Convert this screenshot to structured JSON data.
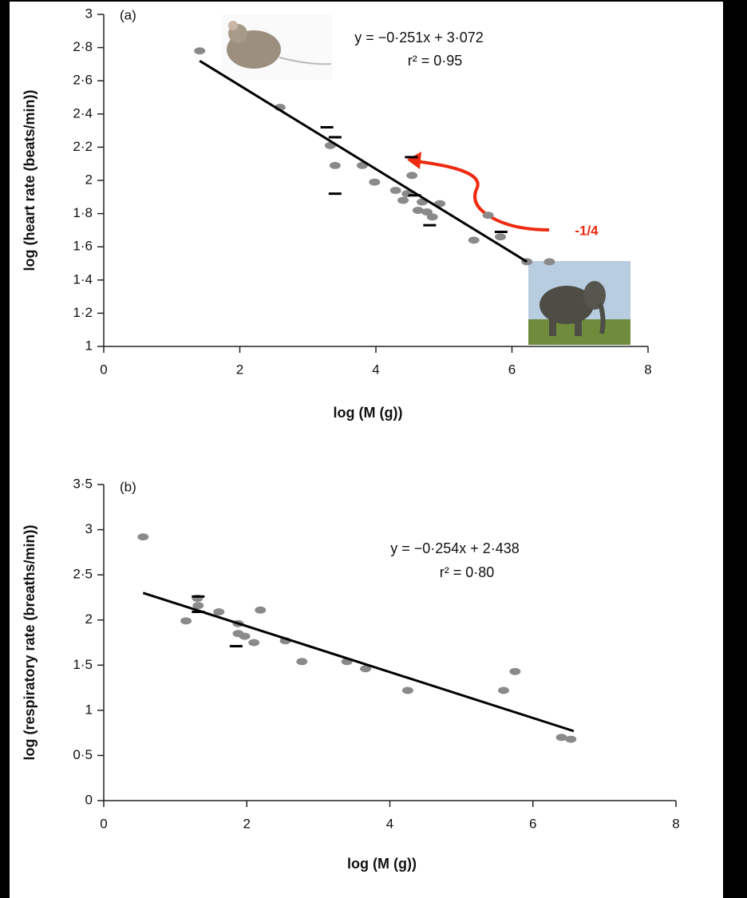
{
  "chart_data": [
    {
      "type": "scatter",
      "panel_label": "(a)",
      "equation": "y = −0·251x + 3·072",
      "r_squared": "r² = 0·95",
      "xlabel": "log (M (g))",
      "ylabel": "log (heart rate (beats/min))",
      "annotation": "-1/4",
      "xlim": [
        0,
        8
      ],
      "ylim": [
        1,
        3
      ],
      "xticks": [
        0,
        2,
        4,
        6,
        8
      ],
      "yticks": [
        1,
        {
          "value": 1.2,
          "label": "1·2"
        },
        {
          "value": 1.4,
          "label": "1·4"
        },
        {
          "value": 1.6,
          "label": "1·6"
        },
        {
          "value": 1.8,
          "label": "1·8"
        },
        2,
        {
          "value": 2.2,
          "label": "2·2"
        },
        {
          "value": 2.4,
          "label": "2·4"
        },
        {
          "value": 2.6,
          "label": "2·6"
        },
        {
          "value": 2.8,
          "label": "2·8"
        },
        3
      ],
      "series": [
        {
          "color": "#8a8a8a",
          "marker": "dot",
          "x": [
            1.41,
            2.59,
            3.33,
            3.4,
            3.8,
            3.98,
            4.29,
            4.53,
            4.46,
            4.4,
            4.68,
            4.62,
            4.75,
            4.83,
            4.94,
            5.44,
            5.65,
            5.83,
            6.22,
            6.55
          ],
          "y": [
            2.78,
            2.44,
            2.21,
            2.09,
            2.09,
            1.99,
            1.94,
            2.03,
            1.92,
            1.88,
            1.87,
            1.82,
            1.81,
            1.78,
            1.86,
            1.64,
            1.79,
            1.66,
            1.51,
            1.51
          ]
        },
        {
          "color": "#000000",
          "marker": "dash",
          "x": [
            3.28,
            3.4,
            3.4,
            4.52,
            4.57,
            4.79,
            5.84
          ],
          "y": [
            2.32,
            2.26,
            1.92,
            2.14,
            1.91,
            1.73,
            1.69
          ]
        }
      ],
      "fit_line": {
        "x": [
          1.41,
          6.22
        ],
        "y": [
          2.72,
          1.51
        ]
      }
    },
    {
      "type": "scatter",
      "panel_label": "(b)",
      "equation": "y = −0·254x + 2·438",
      "r_squared": "r² = 0·80",
      "xlabel": "log (M (g))",
      "ylabel": "log (respiratory rate (breaths/min))",
      "xlim": [
        0,
        8
      ],
      "ylim": [
        0,
        3.5
      ],
      "xticks": [
        0,
        2,
        4,
        6,
        8
      ],
      "yticks": [
        0,
        {
          "value": 0.5,
          "label": "0·5"
        },
        1,
        {
          "value": 1.5,
          "label": "1·5"
        },
        2,
        {
          "value": 2.5,
          "label": "2·5"
        },
        3,
        {
          "value": 3.5,
          "label": "3·5"
        }
      ],
      "series": [
        {
          "color": "#8a8a8a",
          "marker": "dot",
          "x": [
            0.55,
            1.15,
            1.31,
            1.32,
            1.61,
            1.88,
            1.88,
            1.97,
            2.1,
            2.19,
            2.54,
            2.77,
            3.4,
            3.66,
            4.25,
            5.59,
            5.75,
            6.4,
            6.53
          ],
          "y": [
            2.92,
            1.99,
            2.24,
            2.16,
            2.09,
            1.96,
            1.85,
            1.82,
            1.75,
            2.11,
            1.77,
            1.54,
            1.54,
            1.46,
            1.22,
            1.22,
            1.43,
            0.7,
            0.68
          ]
        },
        {
          "color": "#000000",
          "marker": "dash",
          "x": [
            1.32,
            1.32,
            1.85
          ],
          "y": [
            2.26,
            2.09,
            1.71
          ]
        }
      ],
      "fit_line": {
        "x": [
          0.55,
          6.57
        ],
        "y": [
          2.3,
          0.77
        ]
      }
    }
  ]
}
